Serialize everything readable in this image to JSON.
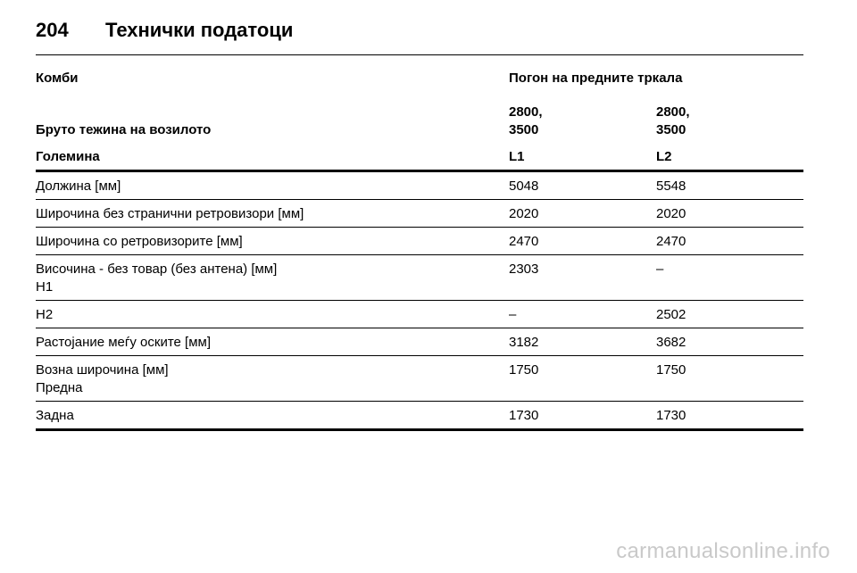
{
  "header": {
    "page_number": "204",
    "title": "Технички податоци"
  },
  "table": {
    "section_label": "Комби",
    "drive_label": "Погон на предните тркала",
    "gross_weight_label": "Бруто тежина на возилото",
    "weight_col1": [
      "2800,",
      "3500"
    ],
    "weight_col2": [
      "2800,",
      "3500"
    ],
    "size_label": "Големина",
    "size_col1": "L1",
    "size_col2": "L2",
    "rows": [
      {
        "lines": [
          "Должина [мм]"
        ],
        "v1": "5048",
        "v2": "5548"
      },
      {
        "lines": [
          "Широчина без странични ретровизори [мм]"
        ],
        "v1": "2020",
        "v2": "2020"
      },
      {
        "lines": [
          "Широчина со ретровизорите [мм]"
        ],
        "v1": "2470",
        "v2": "2470"
      },
      {
        "lines": [
          "Височина - без товар (без антена) [мм]",
          "H1"
        ],
        "v1": "2303",
        "v2": "–"
      },
      {
        "lines": [
          "H2"
        ],
        "v1": "–",
        "v2": "2502"
      },
      {
        "lines": [
          "Растојание меѓу оските [мм]"
        ],
        "v1": "3182",
        "v2": "3682"
      },
      {
        "lines": [
          "Возна широчина [мм]",
          "Предна"
        ],
        "v1": "1750",
        "v2": "1750"
      },
      {
        "lines": [
          "Задна"
        ],
        "v1": "1730",
        "v2": "1730"
      }
    ]
  },
  "watermark": "carmanualsonline.info"
}
